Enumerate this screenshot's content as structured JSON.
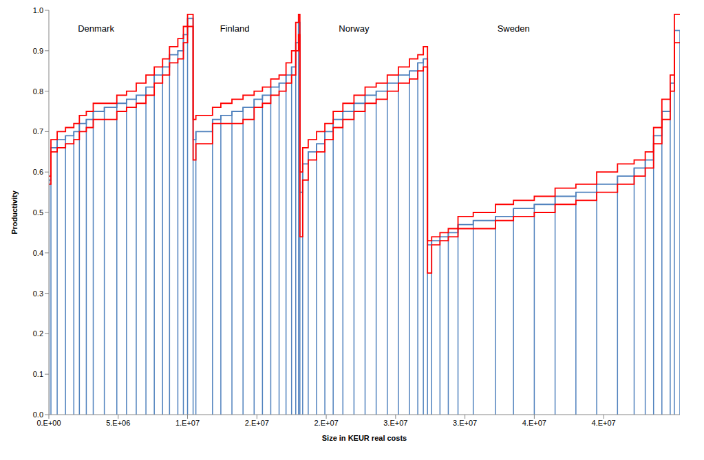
{
  "chart_data": {
    "type": "line",
    "line_style": "step",
    "x_label": "Size in KEUR real costs",
    "y_label": "Productivity",
    "xlim": [
      0,
      45500000
    ],
    "xticks": [
      {
        "value": 0,
        "label": "0.E+00"
      },
      {
        "value": 5000000,
        "label": "5.E+06"
      },
      {
        "value": 10000000,
        "label": "1.E+07"
      },
      {
        "value": 15000000,
        "label": "2.E+07"
      },
      {
        "value": 20000000,
        "label": "2.E+07"
      },
      {
        "value": 25000000,
        "label": "3.E+07"
      },
      {
        "value": 30000000,
        "label": "3.E+07"
      },
      {
        "value": 35000000,
        "label": "4.E+07"
      },
      {
        "value": 40000000,
        "label": "4.E+07"
      }
    ],
    "ylim": [
      0,
      1
    ],
    "yticks": [
      {
        "value": 0,
        "label": "0.0"
      },
      0.1,
      0.2,
      0.3,
      0.4,
      0.5,
      0.6,
      0.7,
      0.8,
      0.9,
      {
        "value": 1,
        "label": "1.0"
      }
    ],
    "grid": false,
    "x": [
      0,
      150000,
      600000,
      1200000,
      1800000,
      2200000,
      2700000,
      3200000,
      4000000,
      4900000,
      5600000,
      6300000,
      7000000,
      7600000,
      8200000,
      8700000,
      9300000,
      9700000,
      10000000,
      10400000,
      10600000,
      11800000,
      12400000,
      13200000,
      14000000,
      14800000,
      15400000,
      16000000,
      16600000,
      17100000,
      17500000,
      17800000,
      18000000,
      18100000,
      18300000,
      18700000,
      19300000,
      19900000,
      20500000,
      21200000,
      22000000,
      22800000,
      23600000,
      24400000,
      25200000,
      26000000,
      26600000,
      27000000,
      27300000,
      27600000,
      28200000,
      28800000,
      29500000,
      30600000,
      32200000,
      33500000,
      35000000,
      36500000,
      38000000,
      39500000,
      41000000,
      42200000,
      43000000,
      43600000,
      44200000,
      44800000,
      45100000,
      45500000
    ],
    "series": [
      {
        "color": "#4f81bd",
        "marker": "drop_line",
        "values": [
          0.58,
          0.66,
          0.68,
          0.69,
          0.7,
          0.72,
          0.73,
          0.75,
          0.76,
          0.77,
          0.78,
          0.79,
          0.81,
          0.84,
          0.86,
          0.89,
          0.9,
          0.94,
          0.98,
          0.68,
          0.7,
          0.73,
          0.74,
          0.75,
          0.76,
          0.78,
          0.79,
          0.81,
          0.82,
          0.84,
          0.86,
          0.92,
          0.97,
          0.55,
          0.62,
          0.65,
          0.67,
          0.7,
          0.73,
          0.75,
          0.77,
          0.79,
          0.8,
          0.82,
          0.84,
          0.85,
          0.87,
          0.88,
          0.42,
          0.43,
          0.44,
          0.45,
          0.47,
          0.48,
          0.49,
          0.51,
          0.52,
          0.54,
          0.55,
          0.57,
          0.59,
          0.61,
          0.63,
          0.69,
          0.75,
          0.82,
          0.95,
          0.95
        ]
      },
      {
        "color": "#ff0000",
        "values": [
          0.59,
          0.68,
          0.7,
          0.71,
          0.72,
          0.74,
          0.75,
          0.77,
          0.77,
          0.79,
          0.8,
          0.82,
          0.84,
          0.86,
          0.88,
          0.91,
          0.93,
          0.96,
          0.99,
          0.73,
          0.74,
          0.76,
          0.77,
          0.78,
          0.79,
          0.8,
          0.81,
          0.83,
          0.84,
          0.87,
          0.9,
          0.97,
          0.99,
          0.6,
          0.66,
          0.68,
          0.7,
          0.72,
          0.75,
          0.77,
          0.79,
          0.81,
          0.82,
          0.84,
          0.86,
          0.88,
          0.89,
          0.91,
          0.43,
          0.44,
          0.45,
          0.46,
          0.49,
          0.5,
          0.52,
          0.53,
          0.54,
          0.56,
          0.57,
          0.6,
          0.62,
          0.63,
          0.65,
          0.71,
          0.78,
          0.84,
          0.99,
          0.99
        ]
      },
      {
        "color": "#ff0000",
        "values": [
          0.57,
          0.65,
          0.66,
          0.67,
          0.68,
          0.7,
          0.71,
          0.73,
          0.73,
          0.75,
          0.76,
          0.77,
          0.79,
          0.82,
          0.84,
          0.87,
          0.88,
          0.92,
          0.96,
          0.63,
          0.67,
          0.72,
          0.72,
          0.72,
          0.73,
          0.76,
          0.77,
          0.79,
          0.8,
          0.82,
          0.84,
          0.9,
          0.94,
          0.44,
          0.58,
          0.63,
          0.65,
          0.68,
          0.71,
          0.73,
          0.75,
          0.77,
          0.78,
          0.8,
          0.82,
          0.83,
          0.85,
          0.86,
          0.35,
          0.42,
          0.43,
          0.44,
          0.46,
          0.46,
          0.48,
          0.49,
          0.5,
          0.52,
          0.53,
          0.55,
          0.57,
          0.59,
          0.61,
          0.67,
          0.73,
          0.8,
          0.92,
          0.92
        ]
      }
    ],
    "annotations": [
      {
        "text": "Denmark",
        "x": 3400000,
        "y": 0.955
      },
      {
        "text": "Finland",
        "x": 13400000,
        "y": 0.955
      },
      {
        "text": "Norway",
        "x": 22000000,
        "y": 0.955
      },
      {
        "text": "Sweden",
        "x": 33500000,
        "y": 0.955
      }
    ]
  }
}
